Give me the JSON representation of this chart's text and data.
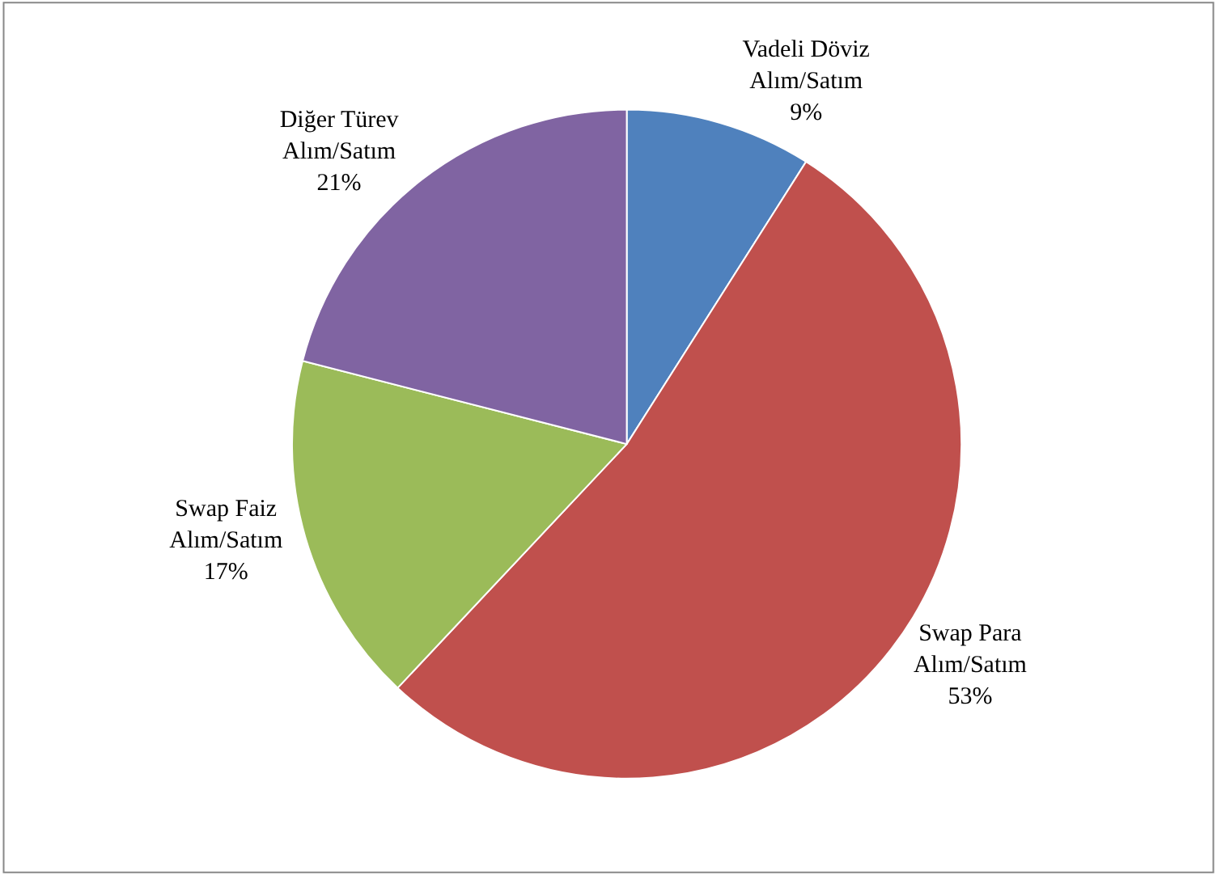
{
  "chart_data": {
    "type": "pie",
    "categories": [
      "Vadeli Döviz Alım/Satım",
      "Swap Para Alım/Satım",
      "Swap Faiz Alım/Satım",
      "Diğer Türev Alım/Satım"
    ],
    "values": [
      9,
      53,
      17,
      21
    ],
    "value_labels": [
      "9%",
      "53%",
      "17%",
      "21%"
    ],
    "colors": [
      "#4f81bd",
      "#c0504d",
      "#9bbb59",
      "#8064a2"
    ],
    "legend": false
  }
}
